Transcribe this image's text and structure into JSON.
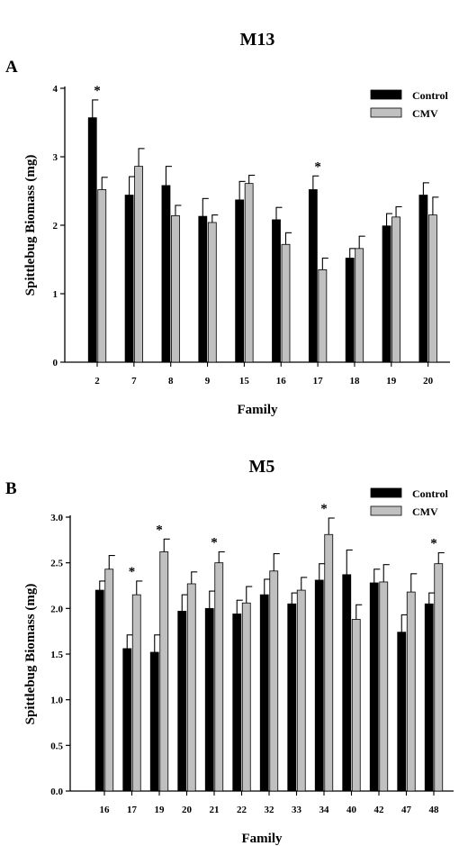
{
  "chart_data": [
    {
      "type": "bar",
      "title": "M13",
      "panel_label": "A",
      "xlabel": "Family",
      "ylabel": "Spittlebug Biomass (mg)",
      "ylim": [
        0,
        4
      ],
      "yticks": [
        "0",
        "1",
        "2",
        "3",
        "4"
      ],
      "categories": [
        "2",
        "7",
        "8",
        "9",
        "15",
        "16",
        "17",
        "18",
        "19",
        "20"
      ],
      "series": [
        {
          "name": "Control",
          "color": "#000000",
          "values": [
            3.57,
            2.44,
            2.58,
            2.13,
            2.37,
            2.08,
            2.52,
            1.52,
            1.99,
            2.44
          ],
          "errors": [
            0.26,
            0.27,
            0.28,
            0.26,
            0.27,
            0.18,
            0.2,
            0.14,
            0.18,
            0.18
          ]
        },
        {
          "name": "CMV",
          "color": "#c0c0c0",
          "values": [
            2.52,
            2.86,
            2.14,
            2.04,
            2.61,
            1.72,
            1.35,
            1.66,
            2.12,
            2.15
          ],
          "errors": [
            0.18,
            0.26,
            0.15,
            0.11,
            0.12,
            0.17,
            0.17,
            0.18,
            0.15,
            0.26
          ]
        }
      ],
      "significant": [
        "*",
        "",
        "",
        "",
        "",
        "",
        "*",
        "",
        "",
        ""
      ],
      "legend": "top-right",
      "grid": false
    },
    {
      "type": "bar",
      "title": "M5",
      "panel_label": "B",
      "xlabel": "Family",
      "ylabel": "Spittlebug Biomass (mg)",
      "ylim": [
        0,
        3
      ],
      "yticks": [
        "0.0",
        "0.5",
        "1.0",
        "1.5",
        "2.0",
        "2.5",
        "3.0"
      ],
      "categories": [
        "16",
        "17",
        "19",
        "20",
        "21",
        "22",
        "32",
        "33",
        "34",
        "40",
        "42",
        "47",
        "48"
      ],
      "series": [
        {
          "name": "Control",
          "color": "#000000",
          "values": [
            2.2,
            1.56,
            1.52,
            1.97,
            2.0,
            1.94,
            2.15,
            2.05,
            2.31,
            2.37,
            2.28,
            1.74,
            2.05
          ],
          "errors": [
            0.1,
            0.15,
            0.19,
            0.18,
            0.19,
            0.15,
            0.17,
            0.12,
            0.18,
            0.27,
            0.15,
            0.19,
            0.12
          ]
        },
        {
          "name": "CMV",
          "color": "#c0c0c0",
          "values": [
            2.43,
            2.15,
            2.62,
            2.27,
            2.5,
            2.06,
            2.41,
            2.2,
            2.81,
            1.88,
            2.29,
            2.18,
            2.49
          ]
        }
      ],
      "cmv_errors": [
        0.15,
        0.15,
        0.14,
        0.13,
        0.12,
        0.18,
        0.19,
        0.14,
        0.18,
        0.16,
        0.19,
        0.2,
        0.12
      ],
      "significant": [
        "",
        "*",
        "*",
        "",
        "*",
        "",
        "",
        "",
        "*",
        "",
        "",
        "",
        "*"
      ],
      "legend": "top-right",
      "grid": false
    }
  ]
}
